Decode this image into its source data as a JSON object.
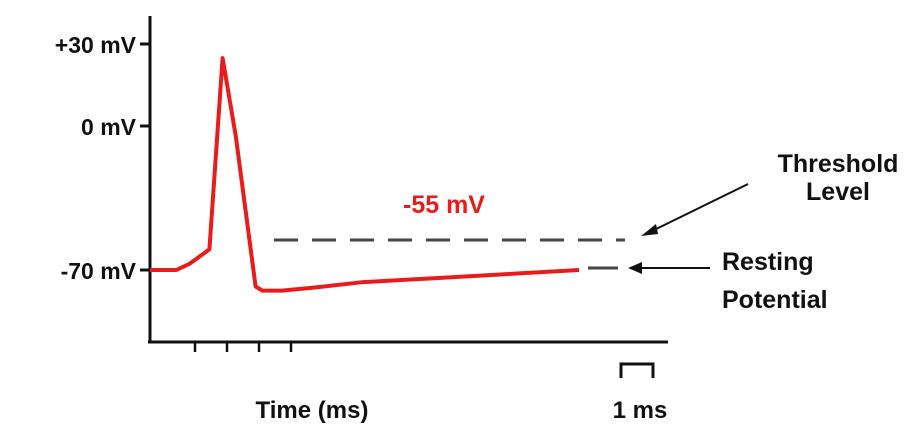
{
  "chart_data": {
    "type": "line",
    "xlabel": "Time (ms)",
    "y_tick_labels": [
      "+30 mV",
      "0 mV",
      "-70 mV"
    ],
    "y_ticks_mv": [
      30,
      0,
      -70
    ],
    "ylim": [
      -85,
      40
    ],
    "scale_bar_label": "1 ms",
    "threshold": {
      "value_mv": -55,
      "value_label": "-55 mV",
      "label_line1": "Threshold",
      "label_line2": "Level"
    },
    "resting": {
      "value_mv": -70,
      "label_line1": "Resting",
      "label_line2": "Potential"
    },
    "series": [
      {
        "color": "#e81c1c",
        "x_ms": [
          0.0,
          0.4,
          0.6,
          0.9,
          1.1,
          1.3,
          1.6,
          1.7,
          2.0,
          2.5,
          3.2,
          4.3,
          6.5
        ],
        "y_mv": [
          -70,
          -70,
          -67,
          -60,
          33,
          -5,
          -78,
          -80,
          -80,
          -78.5,
          -76,
          -74,
          -70
        ]
      }
    ],
    "colors": {
      "trace": "#e81c1c",
      "axes": "#111111"
    }
  }
}
